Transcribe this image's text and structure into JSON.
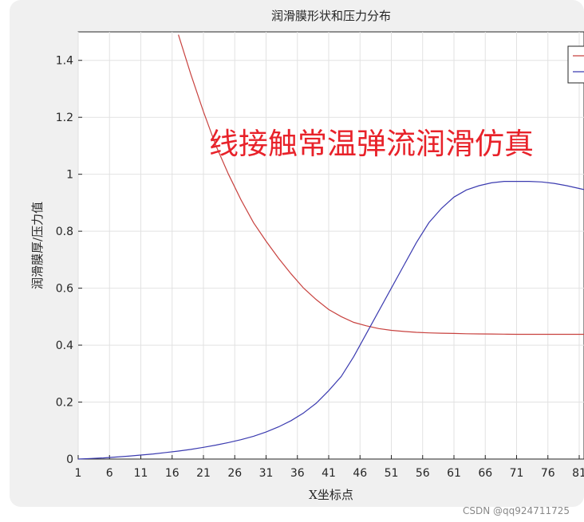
{
  "chart_data": {
    "type": "line",
    "title": "润滑膜形状和压力分布",
    "xlabel": "X坐标点",
    "ylabel": "润滑膜厚/压力值",
    "xlim": [
      1,
      83
    ],
    "ylim": [
      0,
      1.5
    ],
    "xticks": [
      "1",
      "6",
      "11",
      "16",
      "21",
      "26",
      "31",
      "36",
      "41",
      "46",
      "51",
      "56",
      "61",
      "66",
      "71",
      "76",
      "81"
    ],
    "yticks": [
      "0",
      "0.2",
      "0.4",
      "0.6",
      "0.8",
      "1",
      "1.2",
      "1.4"
    ],
    "grid": true,
    "legend_position": "top-right",
    "colors": {
      "film": "#c8423f",
      "pressure": "#3b3bb0",
      "watermark": "#e8222a"
    },
    "series": [
      {
        "key": "film",
        "x": [
          17,
          19,
          21,
          23,
          25,
          27,
          29,
          31,
          33,
          35,
          37,
          39,
          41,
          43,
          45,
          47,
          49,
          51,
          53,
          55,
          57,
          59,
          61,
          63,
          65,
          67,
          69,
          71,
          73,
          75,
          77,
          79,
          81,
          83
        ],
        "values": [
          1.49,
          1.35,
          1.22,
          1.1,
          1.0,
          0.91,
          0.83,
          0.765,
          0.705,
          0.65,
          0.6,
          0.56,
          0.525,
          0.5,
          0.48,
          0.468,
          0.458,
          0.452,
          0.448,
          0.445,
          0.443,
          0.442,
          0.441,
          0.44,
          0.4395,
          0.439,
          0.4385,
          0.438,
          0.438,
          0.438,
          0.438,
          0.438,
          0.438,
          0.438
        ]
      },
      {
        "key": "pressure",
        "x": [
          1,
          3,
          5,
          7,
          9,
          11,
          13,
          15,
          17,
          19,
          21,
          23,
          25,
          27,
          29,
          31,
          33,
          35,
          37,
          39,
          41,
          43,
          45,
          47,
          49,
          51,
          53,
          55,
          57,
          59,
          61,
          63,
          65,
          67,
          69,
          71,
          73,
          75,
          77,
          79,
          81,
          83
        ],
        "values": [
          0,
          0.002,
          0.004,
          0.007,
          0.01,
          0.014,
          0.018,
          0.023,
          0.028,
          0.034,
          0.041,
          0.049,
          0.058,
          0.068,
          0.08,
          0.095,
          0.113,
          0.135,
          0.162,
          0.196,
          0.24,
          0.29,
          0.36,
          0.44,
          0.52,
          0.6,
          0.68,
          0.76,
          0.83,
          0.88,
          0.92,
          0.945,
          0.96,
          0.97,
          0.975,
          0.975,
          0.975,
          0.973,
          0.968,
          0.96,
          0.95,
          0.94
        ]
      }
    ]
  },
  "watermark_text": "线接触常温弹流润滑仿真",
  "credit_text": "CSDN @qq924711725"
}
